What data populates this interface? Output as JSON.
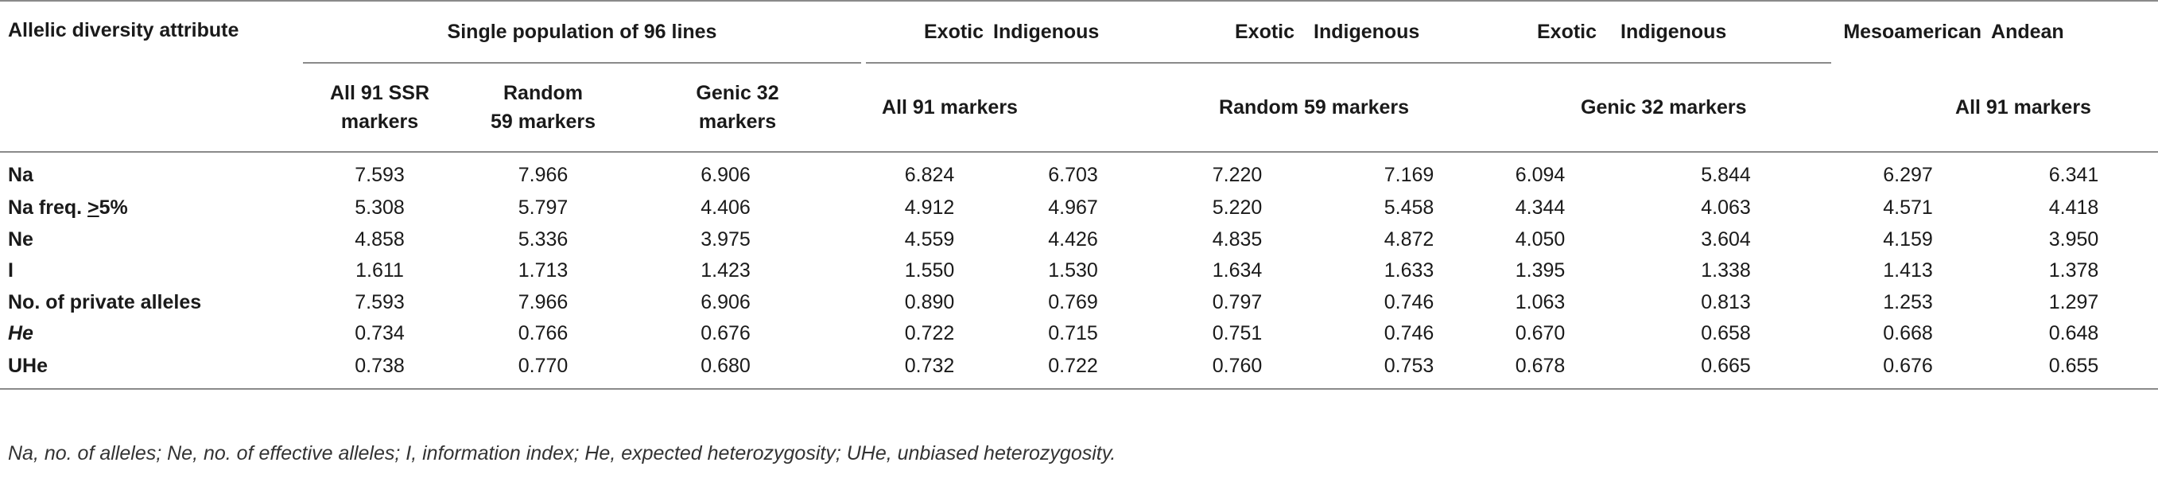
{
  "table": {
    "header_row1": {
      "attribute": "Allelic diversity attribute",
      "single_population": "Single population of 96 lines",
      "exotic_1": "Exotic",
      "indigenous_1": "Indigenous",
      "exotic_2": "Exotic",
      "indigenous_2": "Indigenous",
      "exotic_3": "Exotic",
      "indigenous_3": "Indigenous",
      "mesoamerican": "Mesoamerican",
      "andean": "Andean"
    },
    "header_row2": {
      "all91_ssr": "All 91 SSR markers",
      "random59": "Random 59 markers",
      "genic32": "Genic 32 markers",
      "all91_a": "All 91 markers",
      "random59_b": "Random 59 markers",
      "genic32_c": "Genic 32 markers",
      "all91_d": "All 91 markers"
    },
    "rows": [
      {
        "label": "Na",
        "values": [
          "7.593",
          "7.966",
          "6.906",
          "6.824",
          "6.703",
          "7.220",
          "7.169",
          "6.094",
          "5.844",
          "6.297",
          "6.341"
        ]
      },
      {
        "label_prefix": "Na freq. ",
        "label_sym": ">",
        "label_suffix": "5%",
        "values": [
          "5.308",
          "5.797",
          "4.406",
          "4.912",
          "4.967",
          "5.220",
          "5.458",
          "4.344",
          "4.063",
          "4.571",
          "4.418"
        ]
      },
      {
        "label": "Ne",
        "values": [
          "4.858",
          "5.336",
          "3.975",
          "4.559",
          "4.426",
          "4.835",
          "4.872",
          "4.050",
          "3.604",
          "4.159",
          "3.950"
        ]
      },
      {
        "label": "I",
        "values": [
          "1.611",
          "1.713",
          "1.423",
          "1.550",
          "1.530",
          "1.634",
          "1.633",
          "1.395",
          "1.338",
          "1.413",
          "1.378"
        ]
      },
      {
        "label": "No. of private alleles",
        "values": [
          "7.593",
          "7.966",
          "6.906",
          "0.890",
          "0.769",
          "0.797",
          "0.746",
          "1.063",
          "0.813",
          "1.253",
          "1.297"
        ]
      },
      {
        "label": "He",
        "values": [
          "0.734",
          "0.766",
          "0.676",
          "0.722",
          "0.715",
          "0.751",
          "0.746",
          "0.670",
          "0.658",
          "0.668",
          "0.648"
        ]
      },
      {
        "label": "UHe",
        "values": [
          "0.738",
          "0.770",
          "0.680",
          "0.732",
          "0.722",
          "0.760",
          "0.753",
          "0.678",
          "0.665",
          "0.676",
          "0.655"
        ]
      }
    ]
  },
  "footnote": "Na, no. of alleles; Ne, no. of effective alleles; I, information index; He, expected heterozygosity; UHe, unbiased heterozygosity."
}
